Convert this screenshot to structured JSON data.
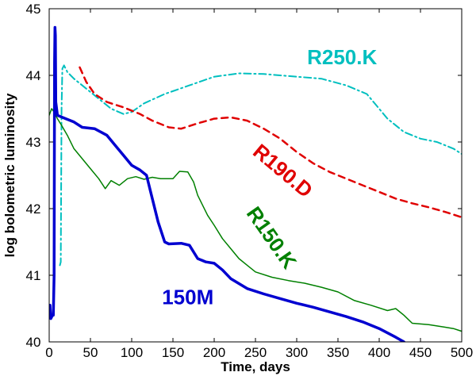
{
  "chart_data": {
    "type": "line",
    "title": "",
    "xlabel": "Time, days",
    "ylabel": "log bolometric luminosity",
    "xlim": [
      0,
      500
    ],
    "ylim": [
      40,
      45
    ],
    "x_ticks": [
      0,
      50,
      100,
      150,
      200,
      250,
      300,
      350,
      400,
      450,
      500
    ],
    "y_ticks": [
      40,
      41,
      42,
      43,
      44,
      45
    ],
    "grid": false,
    "series": [
      {
        "name": "R250.K",
        "color": "#00bfbf",
        "style": "dashdot",
        "width": 2,
        "points": [
          [
            13,
            41.15
          ],
          [
            14,
            41.2
          ],
          [
            15,
            43.5
          ],
          [
            16,
            44.1
          ],
          [
            18,
            44.15
          ],
          [
            22,
            44.05
          ],
          [
            30,
            43.95
          ],
          [
            45,
            43.8
          ],
          [
            60,
            43.65
          ],
          [
            75,
            43.5
          ],
          [
            90,
            43.42
          ],
          [
            100,
            43.45
          ],
          [
            115,
            43.58
          ],
          [
            140,
            43.72
          ],
          [
            170,
            43.85
          ],
          [
            200,
            43.98
          ],
          [
            230,
            44.03
          ],
          [
            260,
            44.02
          ],
          [
            300,
            43.98
          ],
          [
            330,
            43.95
          ],
          [
            360,
            43.85
          ],
          [
            385,
            43.72
          ],
          [
            410,
            43.35
          ],
          [
            430,
            43.15
          ],
          [
            450,
            43.05
          ],
          [
            470,
            43.0
          ],
          [
            490,
            42.9
          ],
          [
            500,
            42.82
          ]
        ]
      },
      {
        "name": "R190.D",
        "color": "#e00000",
        "style": "dashed",
        "width": 2.5,
        "points": [
          [
            37,
            44.12
          ],
          [
            45,
            43.9
          ],
          [
            55,
            43.72
          ],
          [
            70,
            43.6
          ],
          [
            90,
            43.52
          ],
          [
            110,
            43.42
          ],
          [
            125,
            43.32
          ],
          [
            145,
            43.22
          ],
          [
            160,
            43.2
          ],
          [
            180,
            43.28
          ],
          [
            200,
            43.35
          ],
          [
            220,
            43.37
          ],
          [
            240,
            43.32
          ],
          [
            260,
            43.2
          ],
          [
            280,
            43.05
          ],
          [
            300,
            42.85
          ],
          [
            320,
            42.68
          ],
          [
            340,
            42.55
          ],
          [
            360,
            42.45
          ],
          [
            380,
            42.35
          ],
          [
            400,
            42.25
          ],
          [
            420,
            42.15
          ],
          [
            440,
            42.08
          ],
          [
            460,
            42.02
          ],
          [
            480,
            41.95
          ],
          [
            500,
            41.87
          ]
        ]
      },
      {
        "name": "R150.K",
        "color": "#008000",
        "style": "solid",
        "width": 1.5,
        "points": [
          [
            0,
            43.4
          ],
          [
            3,
            43.5
          ],
          [
            6,
            43.45
          ],
          [
            10,
            43.35
          ],
          [
            15,
            43.25
          ],
          [
            22,
            43.1
          ],
          [
            30,
            42.9
          ],
          [
            40,
            42.75
          ],
          [
            50,
            42.6
          ],
          [
            60,
            42.45
          ],
          [
            68,
            42.3
          ],
          [
            75,
            42.42
          ],
          [
            85,
            42.35
          ],
          [
            95,
            42.45
          ],
          [
            105,
            42.48
          ],
          [
            115,
            42.44
          ],
          [
            125,
            42.47
          ],
          [
            135,
            42.45
          ],
          [
            150,
            42.45
          ],
          [
            158,
            42.56
          ],
          [
            168,
            42.55
          ],
          [
            175,
            42.4
          ],
          [
            180,
            42.2
          ],
          [
            192,
            41.9
          ],
          [
            200,
            41.75
          ],
          [
            210,
            41.55
          ],
          [
            220,
            41.4
          ],
          [
            230,
            41.25
          ],
          [
            240,
            41.15
          ],
          [
            250,
            41.05
          ],
          [
            270,
            40.97
          ],
          [
            290,
            40.92
          ],
          [
            310,
            40.88
          ],
          [
            330,
            40.82
          ],
          [
            350,
            40.75
          ],
          [
            370,
            40.62
          ],
          [
            390,
            40.55
          ],
          [
            410,
            40.47
          ],
          [
            420,
            40.5
          ],
          [
            430,
            40.4
          ],
          [
            440,
            40.28
          ],
          [
            460,
            40.26
          ],
          [
            480,
            40.22
          ],
          [
            490,
            40.2
          ],
          [
            500,
            40.16
          ]
        ]
      },
      {
        "name": "150M",
        "color": "#0000d0",
        "style": "solid",
        "width": 3.5,
        "points": [
          [
            0,
            40.4
          ],
          [
            1,
            40.55
          ],
          [
            2,
            40.35
          ],
          [
            4,
            40.4
          ],
          [
            5,
            40.4
          ],
          [
            6,
            41.0
          ],
          [
            6.5,
            44.2
          ],
          [
            7,
            44.72
          ],
          [
            7.5,
            44.6
          ],
          [
            8,
            43.6
          ],
          [
            10,
            43.4
          ],
          [
            20,
            43.35
          ],
          [
            30,
            43.3
          ],
          [
            40,
            43.22
          ],
          [
            55,
            43.2
          ],
          [
            70,
            43.1
          ],
          [
            80,
            42.95
          ],
          [
            90,
            42.8
          ],
          [
            100,
            42.65
          ],
          [
            110,
            42.58
          ],
          [
            118,
            42.5
          ],
          [
            125,
            42.15
          ],
          [
            132,
            41.8
          ],
          [
            140,
            41.5
          ],
          [
            145,
            41.47
          ],
          [
            160,
            41.48
          ],
          [
            170,
            41.45
          ],
          [
            180,
            41.25
          ],
          [
            190,
            41.2
          ],
          [
            200,
            41.18
          ],
          [
            210,
            41.08
          ],
          [
            220,
            40.95
          ],
          [
            240,
            40.8
          ],
          [
            260,
            40.72
          ],
          [
            280,
            40.65
          ],
          [
            300,
            40.58
          ],
          [
            320,
            40.52
          ],
          [
            340,
            40.45
          ],
          [
            360,
            40.38
          ],
          [
            380,
            40.3
          ],
          [
            400,
            40.2
          ],
          [
            420,
            40.07
          ],
          [
            430,
            40.0
          ]
        ]
      }
    ],
    "labels": [
      {
        "text": "R250.K",
        "series": "R250.K",
        "at": [
          355,
          44.25
        ],
        "rotate": 0
      },
      {
        "text": "R190.D",
        "series": "R190.D",
        "at": [
          282,
          42.55
        ],
        "rotate": 40
      },
      {
        "text": "R150.K",
        "series": "R150.K",
        "at": [
          268,
          41.55
        ],
        "rotate": 55
      },
      {
        "text": "150M",
        "series": "150M",
        "at": [
          168,
          40.65
        ],
        "rotate": 0
      }
    ]
  }
}
